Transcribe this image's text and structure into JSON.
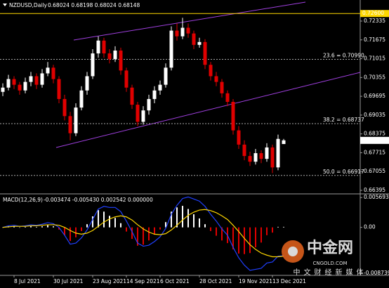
{
  "chart_data": {
    "type": "candlestick",
    "title": "NZDUSD,Daily",
    "ohlc_readout": "0.68024 0.68198 0.68024 0.68148",
    "bull_color": "#ffffff",
    "bear_color": "#e00000",
    "ylim": [
      0.66296,
      0.73074
    ],
    "yticks": [
      0.72335,
      0.71675,
      0.71015,
      0.70355,
      0.69695,
      0.69035,
      0.68375,
      0.67715,
      0.67055,
      0.66395
    ],
    "resistance": {
      "value": 0.726,
      "label": "0.72600",
      "color": "#ffd700"
    },
    "last_price": 0.68148,
    "fib_levels": [
      {
        "value": 0.7099,
        "label": "23.6 = 0.70990"
      },
      {
        "value": 0.68737,
        "label": "38.2 = 0.68737"
      },
      {
        "value": 0.66917,
        "label": "50.0 = 0.66917"
      }
    ],
    "xticks": [
      {
        "value": 2,
        "label": "8 Jul 2021"
      },
      {
        "value": 9,
        "label": "30 Jul 2021"
      },
      {
        "value": 16,
        "label": "23 Aug 2021"
      },
      {
        "value": 22,
        "label": "14 Sep 2021"
      },
      {
        "value": 28,
        "label": "6 Oct 2021"
      },
      {
        "value": 35,
        "label": "28 Oct 2021"
      },
      {
        "value": 42,
        "label": "19 Nov 2021"
      },
      {
        "value": 48,
        "label": "13 Dec 2021"
      }
    ],
    "candles": [
      [
        0.6985,
        0.7015,
        0.697,
        0.7
      ],
      [
        0.7,
        0.7045,
        0.699,
        0.703
      ],
      [
        0.703,
        0.704,
        0.6995,
        0.701
      ],
      [
        0.701,
        0.702,
        0.6975,
        0.699
      ],
      [
        0.699,
        0.7035,
        0.698,
        0.702
      ],
      [
        0.702,
        0.7055,
        0.7005,
        0.704
      ],
      [
        0.704,
        0.705,
        0.6995,
        0.701
      ],
      [
        0.701,
        0.7065,
        0.7,
        0.705
      ],
      [
        0.705,
        0.709,
        0.704,
        0.707
      ],
      [
        0.707,
        0.708,
        0.7015,
        0.703
      ],
      [
        0.703,
        0.704,
        0.6945,
        0.696
      ],
      [
        0.696,
        0.6975,
        0.6885,
        0.69
      ],
      [
        0.69,
        0.6915,
        0.6815,
        0.684
      ],
      [
        0.684,
        0.6945,
        0.683,
        0.693
      ],
      [
        0.693,
        0.7005,
        0.692,
        0.699
      ],
      [
        0.699,
        0.7055,
        0.6975,
        0.704
      ],
      [
        0.704,
        0.7135,
        0.703,
        0.712
      ],
      [
        0.712,
        0.718,
        0.7105,
        0.7165
      ],
      [
        0.7165,
        0.7175,
        0.7105,
        0.712
      ],
      [
        0.712,
        0.7135,
        0.7085,
        0.71
      ],
      [
        0.71,
        0.7145,
        0.709,
        0.713
      ],
      [
        0.713,
        0.714,
        0.7045,
        0.706
      ],
      [
        0.706,
        0.707,
        0.6985,
        0.7
      ],
      [
        0.7,
        0.701,
        0.6925,
        0.694
      ],
      [
        0.694,
        0.695,
        0.6865,
        0.688
      ],
      [
        0.688,
        0.6935,
        0.687,
        0.692
      ],
      [
        0.692,
        0.6975,
        0.6905,
        0.696
      ],
      [
        0.696,
        0.7005,
        0.6945,
        0.699
      ],
      [
        0.699,
        0.7025,
        0.6975,
        0.701
      ],
      [
        0.701,
        0.7085,
        0.7,
        0.707
      ],
      [
        0.707,
        0.7215,
        0.706,
        0.72
      ],
      [
        0.72,
        0.7225,
        0.7165,
        0.718
      ],
      [
        0.718,
        0.7245,
        0.717,
        0.721
      ],
      [
        0.721,
        0.7225,
        0.7175,
        0.719
      ],
      [
        0.719,
        0.72,
        0.7135,
        0.715
      ],
      [
        0.715,
        0.7175,
        0.714,
        0.716
      ],
      [
        0.716,
        0.717,
        0.7065,
        0.708
      ],
      [
        0.708,
        0.709,
        0.7025,
        0.704
      ],
      [
        0.704,
        0.7055,
        0.7005,
        0.702
      ],
      [
        0.702,
        0.703,
        0.6965,
        0.698
      ],
      [
        0.698,
        0.699,
        0.6935,
        0.695
      ],
      [
        0.695,
        0.696,
        0.6835,
        0.685
      ],
      [
        0.685,
        0.6865,
        0.6785,
        0.68
      ],
      [
        0.68,
        0.6815,
        0.6745,
        0.676
      ],
      [
        0.676,
        0.6775,
        0.6725,
        0.674
      ],
      [
        0.674,
        0.6785,
        0.673,
        0.677
      ],
      [
        0.677,
        0.678,
        0.6735,
        0.675
      ],
      [
        0.675,
        0.6805,
        0.674,
        0.679
      ],
      [
        0.679,
        0.68,
        0.67,
        0.672
      ],
      [
        0.672,
        0.6835,
        0.671,
        0.682
      ],
      [
        0.6802,
        0.682,
        0.6802,
        0.6815
      ]
    ],
    "macd_panel": {
      "title": "MACD(12,26,9)",
      "readout": "-0.003474 -0.005430 0.002542 0.000000",
      "ylim": [
        -0.009017,
        0.00625
      ],
      "yticks": [
        0.005693,
        {
          "value": 0,
          "label": "0.00"
        },
        -0.008739
      ],
      "macd": {
        "color": "#2040ff",
        "values": [
          0.0,
          0.0003,
          0.0004,
          0.0002,
          0.0003,
          0.0005,
          0.0004,
          0.0006,
          0.0009,
          0.0007,
          0.0,
          -0.0015,
          -0.0032,
          -0.003,
          -0.002,
          -0.0005,
          0.0015,
          0.0035,
          0.004,
          0.0038,
          0.0038,
          0.003,
          0.0012,
          -0.0008,
          -0.003,
          -0.0036,
          -0.0034,
          -0.0027,
          -0.0018,
          -0.0002,
          0.0025,
          0.0042,
          0.0055,
          0.0058,
          0.0054,
          0.005,
          0.004,
          0.0025,
          0.0012,
          -0.0003,
          -0.0015,
          -0.0038,
          -0.0058,
          -0.0072,
          -0.0082,
          -0.008,
          -0.0078,
          -0.0068,
          -0.0066,
          -0.0055,
          -0.0054
        ]
      },
      "signal": {
        "color": "#ffd700",
        "values": [
          0.0,
          0.0001,
          0.0002,
          0.0002,
          0.0002,
          0.0003,
          0.0003,
          0.0004,
          0.0005,
          0.0005,
          0.0004,
          0.0,
          -0.0006,
          -0.0011,
          -0.0013,
          -0.0011,
          -0.0006,
          0.0002,
          0.001,
          0.0016,
          0.002,
          0.0022,
          0.002,
          0.0014,
          0.0005,
          -0.0003,
          -0.0009,
          -0.0013,
          -0.0014,
          -0.0012,
          -0.0005,
          0.0004,
          0.0014,
          0.0023,
          0.0029,
          0.0033,
          0.0034,
          0.0032,
          0.0028,
          0.0022,
          0.0015,
          0.0004,
          -0.0008,
          -0.0021,
          -0.0033,
          -0.0042,
          -0.0049,
          -0.0053,
          -0.0056,
          -0.0056,
          -0.0055
        ]
      },
      "histogram": {
        "up_color": "#ffffff",
        "down_color": "#e00000",
        "values": [
          0.0,
          0.0002,
          0.0002,
          0.0,
          0.0001,
          0.0002,
          0.0001,
          0.0002,
          0.0004,
          0.0002,
          -0.0004,
          -0.0015,
          -0.0026,
          -0.0019,
          -0.0007,
          0.0006,
          0.0021,
          0.0033,
          0.003,
          0.0022,
          0.0018,
          0.0008,
          -0.0008,
          -0.0022,
          -0.0035,
          -0.0033,
          -0.0025,
          -0.0014,
          -0.0004,
          0.001,
          0.003,
          0.0038,
          0.0041,
          0.0035,
          0.0025,
          0.0017,
          0.0006,
          -0.0007,
          -0.0016,
          -0.0025,
          -0.003,
          -0.0042,
          -0.005,
          -0.0051,
          -0.0049,
          -0.0038,
          -0.0029,
          -0.0015,
          -0.001,
          0.0001,
          0.0001
        ]
      }
    },
    "watermark": {
      "brand": "中金网",
      "site": "CNGOLD.COM",
      "slogan": "中文财经新媒体"
    }
  }
}
